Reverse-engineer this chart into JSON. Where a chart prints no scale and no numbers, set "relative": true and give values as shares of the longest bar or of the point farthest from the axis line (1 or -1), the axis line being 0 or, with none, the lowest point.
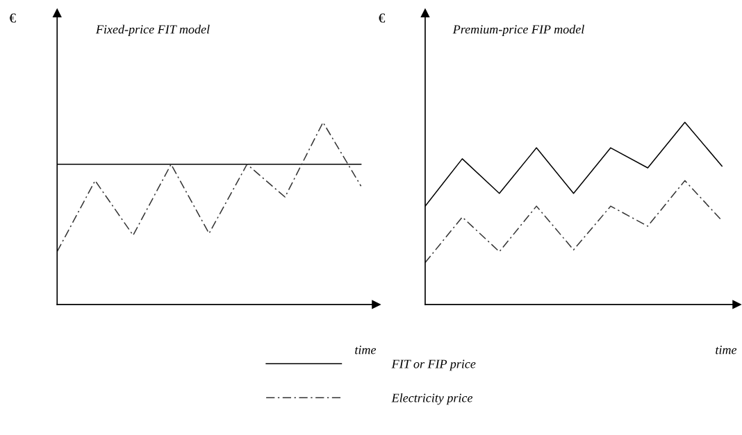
{
  "chart_data": [
    {
      "type": "line",
      "title": "Fixed-price FIT model",
      "ylabel": "€",
      "xlabel": "time",
      "relative": true,
      "grid": false,
      "legend": "bottom",
      "marker": "none",
      "categories": [
        null,
        null,
        null,
        null,
        null,
        null,
        null,
        null,
        null
      ],
      "series": [
        {
          "name": "FIT or FIP price",
          "color": "#000000",
          "line_style": "solid",
          "values": [
            0.77,
            0.77,
            0.77,
            0.77,
            0.77,
            0.77,
            0.77,
            0.77,
            0.77
          ]
        },
        {
          "name": "Electricity price",
          "color": "#333333",
          "line_style": "dashdot",
          "values": [
            0.29,
            0.68,
            0.38,
            0.77,
            0.39,
            0.77,
            0.59,
            1,
            0.65
          ]
        }
      ]
    },
    {
      "type": "line",
      "title": "Premium-price FIP model",
      "ylabel": "€",
      "xlabel": "time",
      "relative": true,
      "grid": false,
      "marker": "none",
      "categories": [
        null,
        null,
        null,
        null,
        null,
        null,
        null,
        null,
        null
      ],
      "series": [
        {
          "color": "#000000",
          "line_style": "solid",
          "values": [
            0.54,
            0.8,
            0.61,
            0.86,
            0.61,
            0.86,
            0.75,
            1,
            0.76
          ]
        },
        {
          "color": "#333333",
          "line_style": "dashdot",
          "values": [
            0.23,
            0.48,
            0.29,
            0.54,
            0.3,
            0.54,
            0.43,
            0.68,
            0.46
          ]
        }
      ]
    }
  ]
}
